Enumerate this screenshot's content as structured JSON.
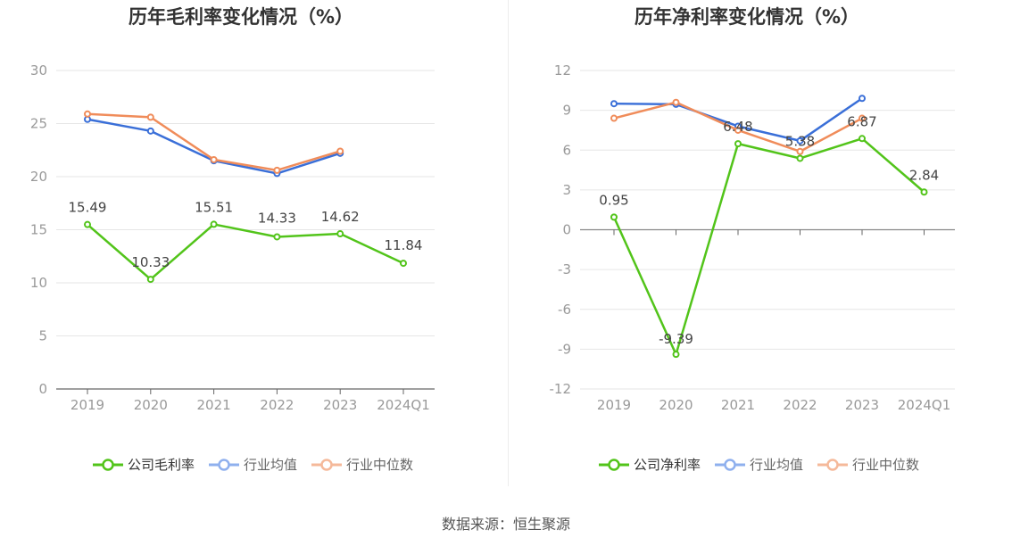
{
  "charts": [
    {
      "id": "left",
      "title": "历年毛利率变化情况（%）",
      "legend": [
        "公司毛利率",
        "行业均值",
        "行业中位数"
      ]
    },
    {
      "id": "right",
      "title": "历年净利率变化情况（%）",
      "legend": [
        "公司净利率",
        "行业均值",
        "行业中位数"
      ]
    }
  ],
  "source": "数据来源：恒生聚源",
  "colors": {
    "company": "#52c41a",
    "avg": "#3a6fd8",
    "median": "#f08c5a",
    "grid": "#e6e6e6",
    "axis": "#666666"
  },
  "chart_data": [
    {
      "type": "line",
      "title": "历年毛利率变化情况（%）",
      "categories": [
        "2019",
        "2020",
        "2021",
        "2022",
        "2023",
        "2024Q1"
      ],
      "ylim": [
        0,
        30
      ],
      "yticks": [
        0,
        5,
        10,
        15,
        20,
        25,
        30
      ],
      "series": [
        {
          "name": "公司毛利率",
          "values": [
            15.49,
            10.33,
            15.51,
            14.33,
            14.62,
            11.84
          ],
          "labels": [
            "15.49",
            "10.33",
            "15.51",
            "14.33",
            "14.62",
            "11.84"
          ]
        },
        {
          "name": "行业均值",
          "values": [
            25.4,
            24.3,
            21.5,
            20.3,
            22.2,
            null
          ]
        },
        {
          "name": "行业中位数",
          "values": [
            25.9,
            25.6,
            21.6,
            20.6,
            22.4,
            null
          ]
        }
      ]
    },
    {
      "type": "line",
      "title": "历年净利率变化情况（%）",
      "categories": [
        "2019",
        "2020",
        "2021",
        "2022",
        "2023",
        "2024Q1"
      ],
      "ylim": [
        -12,
        12
      ],
      "yticks": [
        -12,
        -9,
        -6,
        -3,
        0,
        3,
        6,
        9,
        12
      ],
      "series": [
        {
          "name": "公司净利率",
          "values": [
            0.95,
            -9.39,
            6.48,
            5.38,
            6.87,
            2.84
          ],
          "labels": [
            "0.95",
            "-9.39",
            "6.48",
            "5.38",
            "6.87",
            "2.84"
          ]
        },
        {
          "name": "行业均值",
          "values": [
            9.5,
            9.45,
            7.8,
            6.7,
            9.9,
            null
          ]
        },
        {
          "name": "行业中位数",
          "values": [
            8.4,
            9.6,
            7.5,
            5.9,
            8.4,
            null
          ]
        }
      ]
    }
  ]
}
